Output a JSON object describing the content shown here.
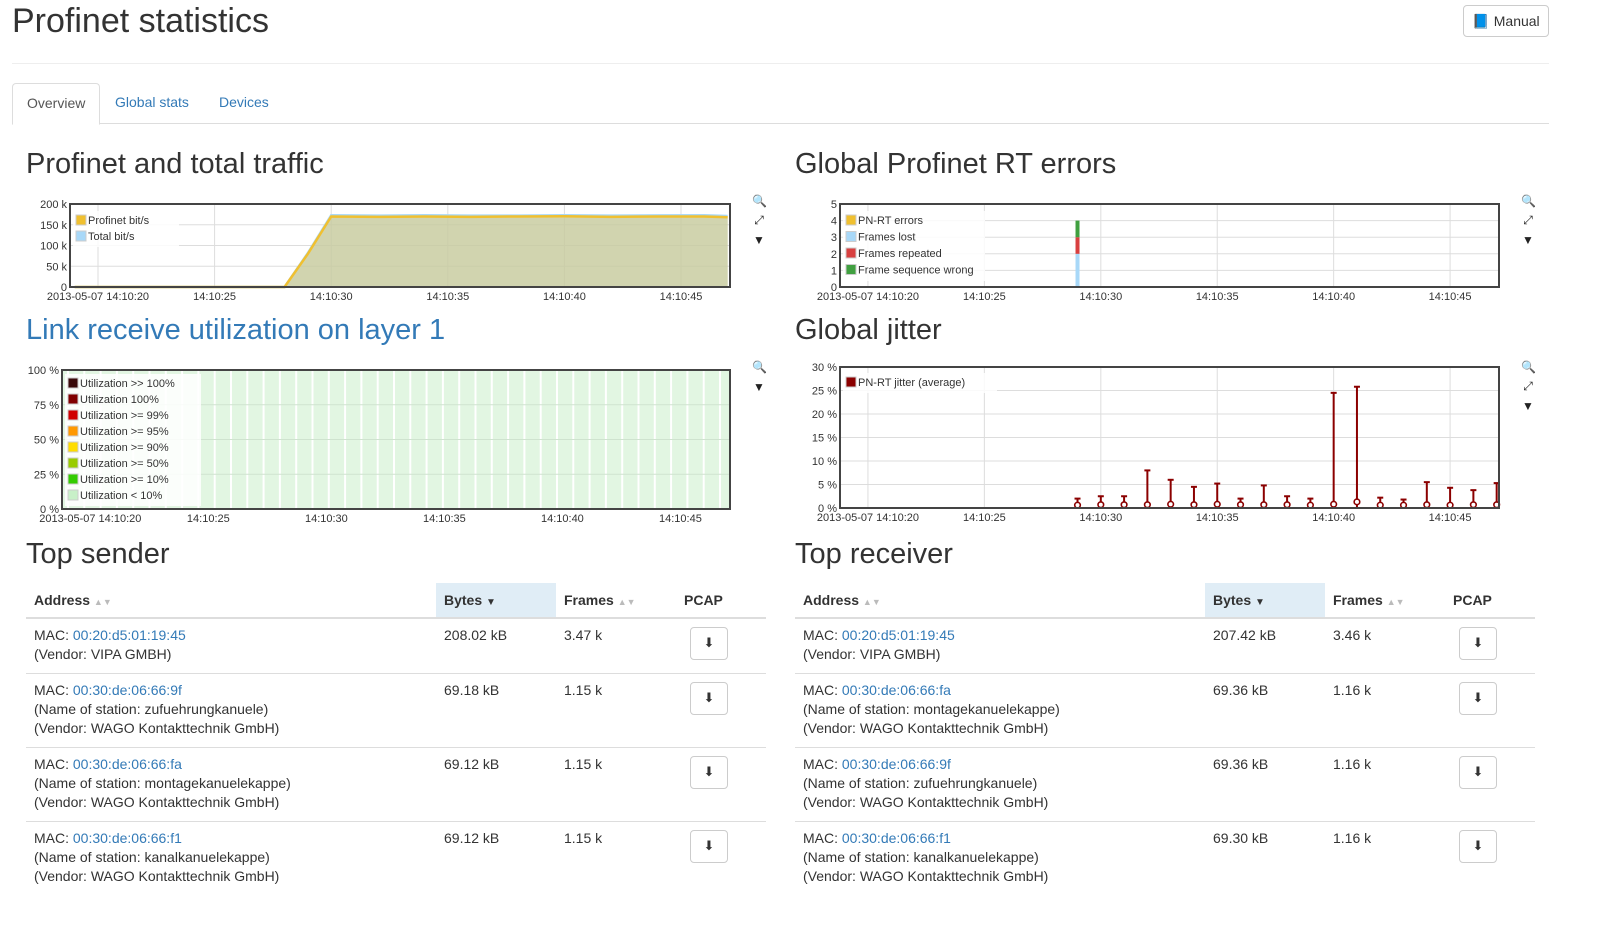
{
  "page": {
    "title": "Profinet statistics",
    "manual_label": "Manual",
    "manual_icon": "book-icon"
  },
  "tabs": [
    {
      "label": "Overview",
      "active": true
    },
    {
      "label": "Global stats"
    },
    {
      "label": "Devices"
    }
  ],
  "sections": {
    "traffic": "Profinet and total traffic",
    "errors": "Global Profinet RT errors",
    "utilization": "Link receive utilization on layer 1",
    "jitter": "Global jitter",
    "top_sender": "Top sender",
    "top_receiver": "Top receiver"
  },
  "chart_data": [
    {
      "id": "traffic",
      "type": "area",
      "ylim": [
        0,
        200000
      ],
      "yticks": [
        "0",
        "50 k",
        "100 k",
        "150 k",
        "200 k"
      ],
      "xticks": [
        "2013-05-07 14:10:20",
        "14:10:25",
        "14:10:30",
        "14:10:35",
        "14:10:40",
        "14:10:45"
      ],
      "legend_placement": "top-left",
      "grid": true,
      "x": [
        "14:10:19",
        "14:10:28",
        "14:10:29",
        "14:10:30",
        "14:10:32",
        "14:10:34",
        "14:10:36",
        "14:10:38",
        "14:10:40",
        "14:10:42",
        "14:10:44",
        "14:10:46",
        "14:10:47"
      ],
      "series": [
        {
          "name": "Profinet bit/s",
          "color": "#f0c030",
          "values": [
            0,
            0,
            80000,
            170000,
            169000,
            170000,
            169000,
            170000,
            170500,
            169000,
            170000,
            170000,
            168000
          ]
        },
        {
          "name": "Total bit/s",
          "color": "#a8d8f8",
          "values": [
            0,
            0,
            82000,
            173000,
            172000,
            173000,
            172000,
            172000,
            173000,
            172000,
            172500,
            173000,
            171000
          ]
        }
      ]
    },
    {
      "id": "errors",
      "type": "bar",
      "stacked": true,
      "ylim": [
        0,
        5
      ],
      "yticks": [
        "0",
        "1",
        "2",
        "3",
        "4",
        "5"
      ],
      "xticks": [
        "2013-05-07 14:10:20",
        "14:10:25",
        "14:10:30",
        "14:10:35",
        "14:10:40",
        "14:10:45"
      ],
      "legend_placement": "top-left",
      "grid": true,
      "x": [
        "14:10:29"
      ],
      "series": [
        {
          "name": "PN-RT errors",
          "color": "#f0c030",
          "values": [
            0
          ]
        },
        {
          "name": "Frames lost",
          "color": "#a8d8f8",
          "values": [
            2
          ]
        },
        {
          "name": "Frames repeated",
          "color": "#d84040",
          "values": [
            1
          ]
        },
        {
          "name": "Frame sequence wrong",
          "color": "#40a040",
          "values": [
            1
          ]
        }
      ]
    },
    {
      "id": "utilization",
      "type": "bar",
      "ylim": [
        0,
        100
      ],
      "yticks": [
        "0 %",
        "25 %",
        "50 %",
        "75 %",
        "100 %"
      ],
      "xticks": [
        "2013-05-07 14:10:20",
        "14:10:25",
        "14:10:30",
        "14:10:35",
        "14:10:40",
        "14:10:45"
      ],
      "legend_placement": "top-left",
      "grid": true,
      "legend": [
        {
          "name": "Utilization >> 100%",
          "color": "#3a0a0a"
        },
        {
          "name": "Utilization 100%",
          "color": "#800000"
        },
        {
          "name": "Utilization >= 99%",
          "color": "#d00000"
        },
        {
          "name": "Utilization >= 95%",
          "color": "#ff9900"
        },
        {
          "name": "Utilization >= 90%",
          "color": "#ffdd00"
        },
        {
          "name": "Utilization >= 50%",
          "color": "#99cc00"
        },
        {
          "name": "Utilization >= 10%",
          "color": "#33cc00"
        },
        {
          "name": "Utilization < 10%",
          "color": "#c8f0c8"
        }
      ],
      "bars_class": "Utilization < 10%",
      "bars_value": 100
    },
    {
      "id": "jitter",
      "type": "errorbar",
      "ylim": [
        0,
        30
      ],
      "yticks": [
        "0 %",
        "5 %",
        "10 %",
        "15 %",
        "20 %",
        "25 %",
        "30 %"
      ],
      "xticks": [
        "2013-05-07 14:10:20",
        "14:10:25",
        "14:10:30",
        "14:10:35",
        "14:10:40",
        "14:10:45"
      ],
      "legend_placement": "top-left",
      "grid": true,
      "series": [
        {
          "name": "PN-RT jitter (average)",
          "color": "#8b0000",
          "x": [
            "14:10:29",
            "14:10:30",
            "14:10:31",
            "14:10:32",
            "14:10:33",
            "14:10:34",
            "14:10:35",
            "14:10:36",
            "14:10:37",
            "14:10:38",
            "14:10:39",
            "14:10:40",
            "14:10:41",
            "14:10:42",
            "14:10:43",
            "14:10:44",
            "14:10:45",
            "14:10:46",
            "14:10:47"
          ],
          "avg": [
            0.6,
            0.7,
            0.7,
            0.7,
            0.8,
            0.7,
            0.8,
            0.7,
            0.7,
            0.7,
            0.6,
            0.8,
            1.3,
            0.6,
            0.6,
            0.7,
            0.6,
            0.7,
            0.7
          ],
          "max": [
            2,
            2.5,
            2.5,
            8,
            6,
            4.5,
            5.2,
            2,
            4.8,
            2.5,
            2,
            24.5,
            25.8,
            2.2,
            1.8,
            5.5,
            4.3,
            3.8,
            5.3
          ]
        }
      ]
    }
  ],
  "tables": {
    "headers": {
      "address": "Address",
      "bytes": "Bytes",
      "frames": "Frames",
      "pcap": "PCAP"
    },
    "sender": [
      {
        "mac_label": "MAC:",
        "mac": "00:20:d5:01:19:45",
        "lines": [
          "(Vendor: VIPA GMBH)"
        ],
        "bytes": "208.02 kB",
        "frames": "3.47 k"
      },
      {
        "mac_label": "MAC:",
        "mac": "00:30:de:06:66:9f",
        "lines": [
          "(Name of station: zufuehrungkanuele)",
          "(Vendor: WAGO Kontakttechnik GmbH)"
        ],
        "bytes": "69.18 kB",
        "frames": "1.15 k"
      },
      {
        "mac_label": "MAC:",
        "mac": "00:30:de:06:66:fa",
        "lines": [
          "(Name of station: montagekanuelekappe)",
          "(Vendor: WAGO Kontakttechnik GmbH)"
        ],
        "bytes": "69.12 kB",
        "frames": "1.15 k"
      },
      {
        "mac_label": "MAC:",
        "mac": "00:30:de:06:66:f1",
        "lines": [
          "(Name of station: kanalkanuelekappe)",
          "(Vendor: WAGO Kontakttechnik GmbH)"
        ],
        "bytes": "69.12 kB",
        "frames": "1.15 k"
      }
    ],
    "receiver": [
      {
        "mac_label": "MAC:",
        "mac": "00:20:d5:01:19:45",
        "lines": [
          "(Vendor: VIPA GMBH)"
        ],
        "bytes": "207.42 kB",
        "frames": "3.46 k"
      },
      {
        "mac_label": "MAC:",
        "mac": "00:30:de:06:66:fa",
        "lines": [
          "(Name of station: montagekanuelekappe)",
          "(Vendor: WAGO Kontakttechnik GmbH)"
        ],
        "bytes": "69.36 kB",
        "frames": "1.16 k"
      },
      {
        "mac_label": "MAC:",
        "mac": "00:30:de:06:66:9f",
        "lines": [
          "(Name of station: zufuehrungkanuele)",
          "(Vendor: WAGO Kontakttechnik GmbH)"
        ],
        "bytes": "69.36 kB",
        "frames": "1.16 k"
      },
      {
        "mac_label": "MAC:",
        "mac": "00:30:de:06:66:f1",
        "lines": [
          "(Name of station: kanalkanuelekappe)",
          "(Vendor: WAGO Kontakttechnik GmbH)"
        ],
        "bytes": "69.30 kB",
        "frames": "1.16 k"
      }
    ]
  }
}
